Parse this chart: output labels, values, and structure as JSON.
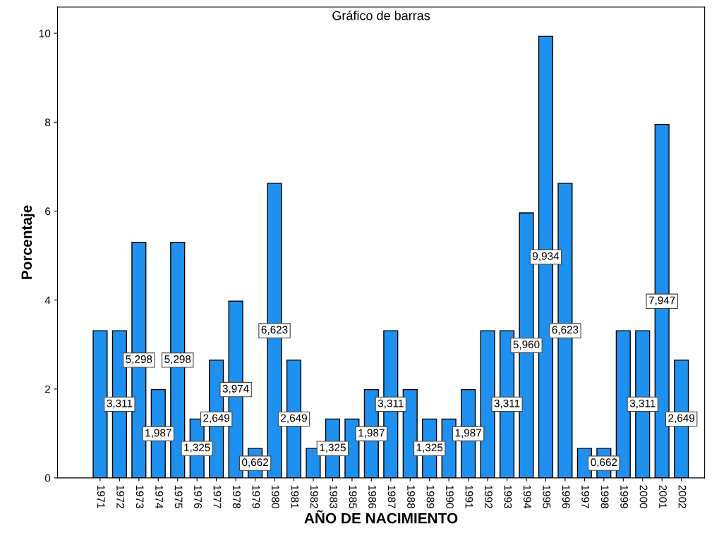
{
  "chart_data": {
    "type": "bar",
    "title": "Gráfico de barras",
    "xlabel": "AÑO DE NACIMIENTO",
    "ylabel": "Porcentaje",
    "categories": [
      "1971",
      "1972",
      "1973",
      "1974",
      "1975",
      "1976",
      "1977",
      "1978",
      "1979",
      "1980",
      "1981",
      "1982",
      "1983",
      "1985",
      "1986",
      "1987",
      "1988",
      "1989",
      "1990",
      "1991",
      "1992",
      "1993",
      "1994",
      "1995",
      "1996",
      "1997",
      "1998",
      "1999",
      "2000",
      "2001",
      "2002"
    ],
    "values": [
      3.311,
      3.311,
      5.298,
      1.987,
      5.298,
      1.325,
      2.649,
      3.974,
      0.662,
      6.623,
      2.649,
      0.662,
      1.325,
      1.325,
      1.987,
      3.311,
      1.987,
      1.325,
      1.325,
      1.987,
      3.311,
      3.311,
      5.96,
      9.934,
      6.623,
      0.662,
      0.662,
      3.311,
      3.311,
      7.947,
      2.649
    ],
    "value_labels": [
      null,
      "3,311",
      "5,298",
      "1,987",
      "5,298",
      "1,325",
      "2,649",
      "3,974",
      "0,662",
      "6,623",
      "2,649",
      null,
      "1,325",
      null,
      "1,987",
      "3,311",
      null,
      "1,325",
      null,
      "1,987",
      null,
      "3,311",
      "5,960",
      "9,934",
      "6,623",
      null,
      "0,662",
      null,
      "3,311",
      "7,947",
      "2,649"
    ],
    "color": "#1e90f0",
    "ylim": [
      0,
      10.59
    ],
    "yticks": [
      0,
      2,
      4,
      6,
      8,
      10
    ],
    "grid": false,
    "legend": false
  }
}
